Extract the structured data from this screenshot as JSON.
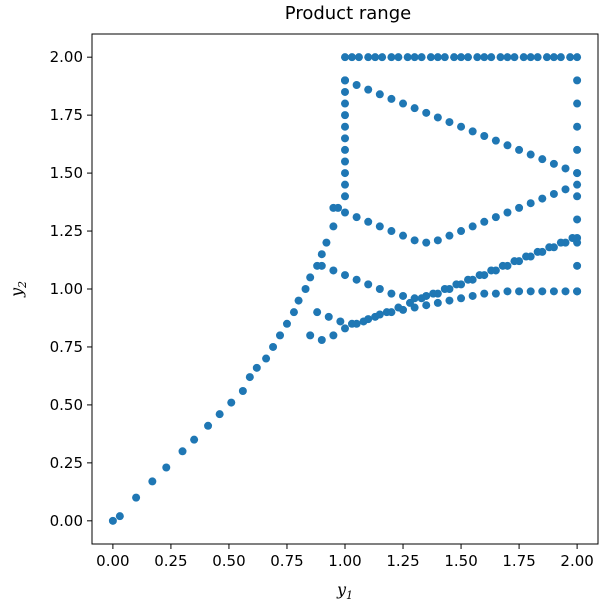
{
  "chart_data": {
    "type": "scatter",
    "title": "Product range",
    "xlabel": "y",
    "xlabel_sub": "1",
    "ylabel": "y",
    "ylabel_sub": "2",
    "xlim": [
      -0.09,
      2.09
    ],
    "ylim": [
      -0.1,
      2.1
    ],
    "xticks": [
      "0.00",
      "0.25",
      "0.50",
      "0.75",
      "1.00",
      "1.25",
      "1.50",
      "1.75",
      "2.00"
    ],
    "yticks": [
      "0.00",
      "0.25",
      "0.50",
      "0.75",
      "1.00",
      "1.25",
      "1.50",
      "1.75",
      "2.00"
    ],
    "grid": false,
    "marker_color": "#1f77b4",
    "series": [
      {
        "values_description_free": true,
        "x": [
          0.0,
          0.03,
          0.1,
          0.17,
          0.23,
          0.3,
          0.35,
          0.41,
          0.46,
          0.51,
          0.56,
          0.59,
          0.62,
          0.66,
          0.69,
          0.72,
          0.75,
          0.78,
          0.8,
          0.83,
          0.85,
          0.88,
          0.9,
          0.92,
          0.95,
          0.97,
          1.0,
          1.0,
          1.0,
          1.0,
          1.0,
          1.0,
          1.0,
          1.0,
          1.0,
          1.0,
          1.0,
          1.0,
          1.03,
          1.06,
          1.1,
          1.13,
          1.16,
          1.2,
          1.23,
          1.27,
          1.3,
          1.33,
          1.37,
          1.4,
          1.43,
          1.47,
          1.5,
          1.53,
          1.57,
          1.6,
          1.63,
          1.67,
          1.7,
          1.73,
          1.77,
          1.8,
          1.83,
          1.87,
          1.9,
          1.93,
          1.97,
          2.0,
          2.0,
          2.0,
          2.0,
          2.0,
          2.0,
          2.0,
          2.0,
          2.0,
          2.0,
          2.0,
          1.0,
          1.05,
          1.1,
          1.15,
          1.2,
          1.25,
          1.3,
          1.35,
          1.4,
          1.45,
          1.5,
          1.55,
          1.6,
          1.65,
          1.7,
          1.75,
          1.8,
          1.85,
          1.9,
          1.95,
          2.0,
          0.95,
          1.0,
          1.05,
          1.1,
          1.15,
          1.2,
          1.25,
          1.3,
          1.35,
          1.4,
          1.45,
          1.5,
          1.55,
          1.6,
          1.65,
          1.7,
          1.75,
          1.8,
          1.85,
          1.9,
          1.95,
          2.0,
          0.9,
          0.95,
          1.0,
          1.05,
          1.1,
          1.15,
          1.2,
          1.25,
          1.3,
          1.35,
          1.4,
          1.45,
          1.5,
          1.55,
          1.6,
          1.65,
          1.7,
          1.75,
          1.8,
          1.85,
          1.9,
          1.95,
          2.0,
          0.88,
          0.93,
          0.98,
          1.03,
          1.08,
          1.13,
          1.18,
          1.23,
          1.28,
          1.33,
          1.38,
          1.43,
          1.48,
          1.53,
          1.58,
          1.63,
          1.68,
          1.73,
          1.78,
          1.83,
          1.88,
          1.93,
          1.98,
          0.85,
          0.9,
          0.95,
          1.0,
          1.05,
          1.1,
          1.15,
          1.2,
          1.25,
          1.3,
          1.35,
          1.4,
          1.45,
          1.5,
          1.55,
          1.6,
          1.65,
          1.7,
          1.75,
          1.8,
          1.85,
          1.9,
          1.95,
          2.0
        ],
        "y": [
          0.0,
          0.02,
          0.1,
          0.17,
          0.23,
          0.3,
          0.35,
          0.41,
          0.46,
          0.51,
          0.56,
          0.62,
          0.66,
          0.7,
          0.75,
          0.8,
          0.85,
          0.9,
          0.95,
          1.0,
          1.05,
          1.1,
          1.15,
          1.2,
          1.27,
          1.35,
          1.4,
          1.45,
          1.5,
          1.55,
          1.6,
          1.65,
          1.7,
          1.75,
          1.8,
          1.85,
          1.9,
          2.0,
          2.0,
          2.0,
          2.0,
          2.0,
          2.0,
          2.0,
          2.0,
          2.0,
          2.0,
          2.0,
          2.0,
          2.0,
          2.0,
          2.0,
          2.0,
          2.0,
          2.0,
          2.0,
          2.0,
          2.0,
          2.0,
          2.0,
          2.0,
          2.0,
          2.0,
          2.0,
          2.0,
          2.0,
          2.0,
          2.0,
          1.9,
          1.8,
          1.7,
          1.6,
          1.5,
          1.4,
          1.3,
          1.2,
          1.1,
          0.99,
          1.9,
          1.88,
          1.86,
          1.84,
          1.82,
          1.8,
          1.78,
          1.76,
          1.74,
          1.72,
          1.7,
          1.68,
          1.66,
          1.64,
          1.62,
          1.6,
          1.58,
          1.56,
          1.54,
          1.52,
          1.5,
          1.35,
          1.33,
          1.31,
          1.29,
          1.27,
          1.25,
          1.23,
          1.21,
          1.2,
          1.21,
          1.23,
          1.25,
          1.27,
          1.29,
          1.31,
          1.33,
          1.35,
          1.37,
          1.39,
          1.41,
          1.43,
          1.45,
          1.1,
          1.08,
          1.06,
          1.04,
          1.02,
          1.0,
          0.98,
          0.97,
          0.96,
          0.97,
          0.98,
          1.0,
          1.02,
          1.04,
          1.06,
          1.08,
          1.1,
          1.12,
          1.14,
          1.16,
          1.18,
          1.2,
          1.22,
          0.9,
          0.88,
          0.86,
          0.85,
          0.86,
          0.88,
          0.9,
          0.92,
          0.94,
          0.96,
          0.98,
          1.0,
          1.02,
          1.04,
          1.06,
          1.08,
          1.1,
          1.12,
          1.14,
          1.16,
          1.18,
          1.2,
          1.22,
          0.8,
          0.78,
          0.8,
          0.83,
          0.85,
          0.87,
          0.89,
          0.9,
          0.91,
          0.92,
          0.93,
          0.94,
          0.95,
          0.96,
          0.97,
          0.98,
          0.98,
          0.99,
          0.99,
          0.99,
          0.99,
          0.99,
          0.99,
          0.99
        ]
      }
    ]
  }
}
